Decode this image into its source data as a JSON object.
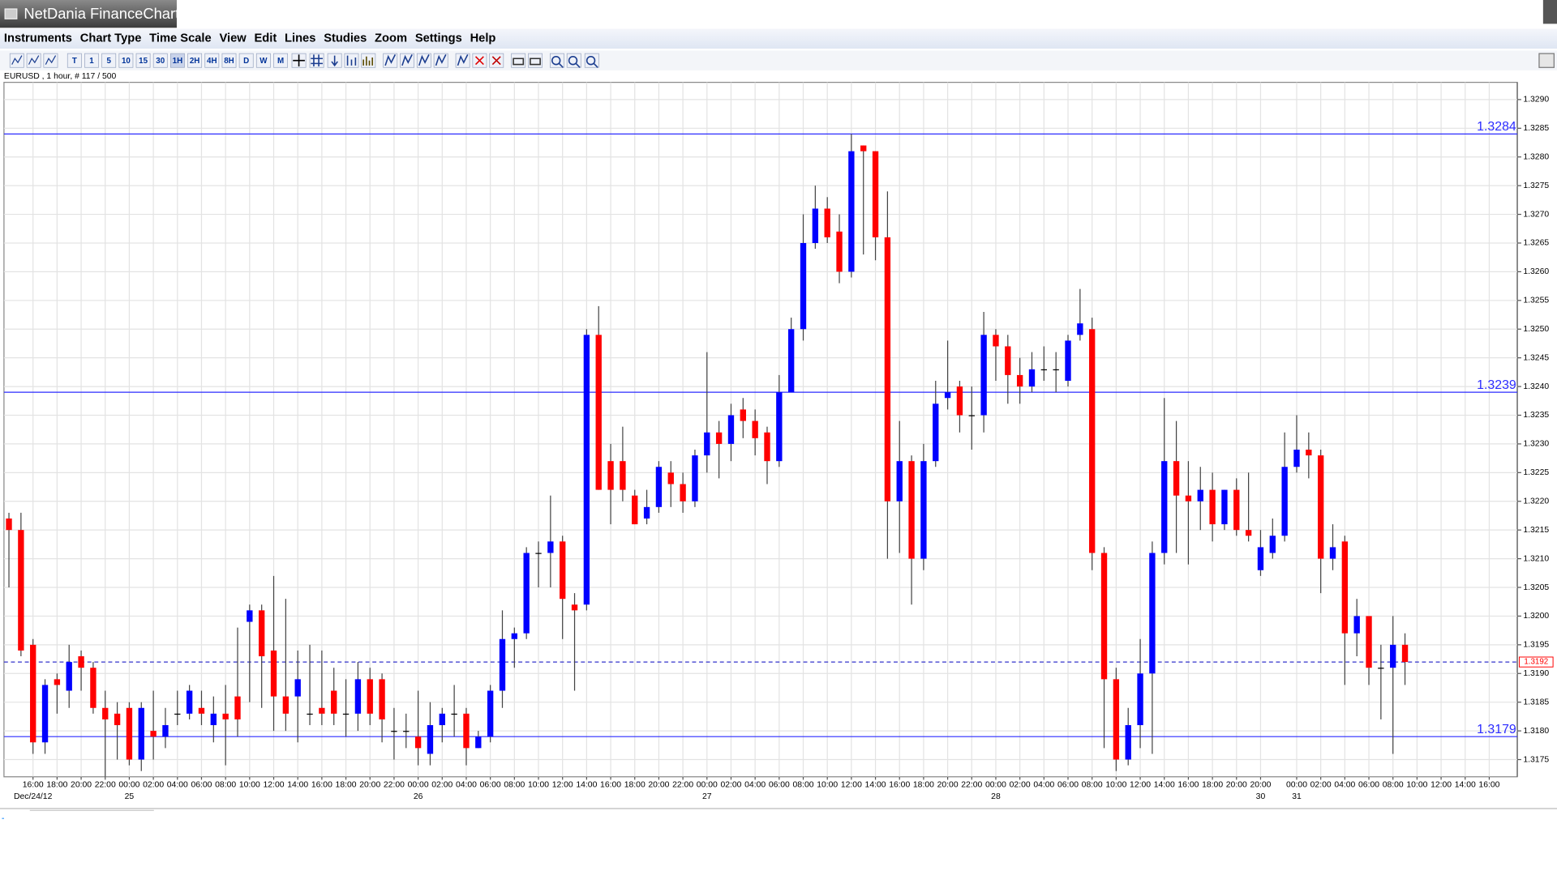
{
  "window": {
    "title": "NetDania FinanceChart"
  },
  "menu": [
    "Instruments",
    "Chart Type",
    "Time Scale",
    "View",
    "Edit",
    "Lines",
    "Studies",
    "Zoom",
    "Settings",
    "Help"
  ],
  "toolbar": {
    "intervals": [
      "T",
      "1",
      "5",
      "10",
      "15",
      "30",
      "1H",
      "2H",
      "4H",
      "8H",
      "D",
      "W",
      "M"
    ]
  },
  "chart_data": {
    "type": "candlestick",
    "subtitle": "EURUSD , 1 hour, # 117 / 500",
    "categories": [
      null,
      null,
      "16:00",
      null,
      "18:00",
      null,
      "20:00",
      null,
      "22:00",
      null,
      "00:00",
      null,
      "02:00",
      null,
      "04:00",
      null,
      "06:00",
      null,
      "08:00",
      null,
      "10:00",
      null,
      "12:00",
      null,
      "14:00",
      null,
      "16:00",
      null,
      "18:00",
      null,
      "20:00",
      null,
      "22:00",
      null,
      "00:00",
      null,
      "02:00",
      null,
      "04:00",
      null,
      "06:00",
      null,
      "08:00",
      null,
      "10:00",
      null,
      "12:00",
      null,
      "14:00",
      null,
      "16:00",
      null,
      "18:00",
      null,
      "20:00",
      null,
      "22:00",
      null,
      "00:00",
      null,
      "02:00",
      null,
      "04:00",
      null,
      "06:00",
      null,
      "08:00",
      null,
      "10:00",
      null,
      "12:00",
      null,
      "14:00",
      null,
      "16:00",
      null,
      "18:00",
      null,
      "20:00",
      null,
      "22:00",
      null,
      "00:00",
      null,
      "02:00",
      null,
      "04:00",
      null,
      "06:00",
      null,
      "08:00",
      null,
      "10:00",
      null,
      "12:00",
      null,
      "14:00",
      null,
      "16:00",
      null,
      "18:00",
      null,
      "20:00",
      null,
      "20:00",
      null,
      null,
      "00:00",
      null,
      "02:00",
      null,
      "04:00",
      null,
      "06:00",
      null,
      "08:00",
      null,
      "10:00",
      null,
      "12:00",
      null,
      "14:00",
      null,
      "16:00"
    ],
    "dates": [
      null,
      null,
      "Dec/24/12",
      null,
      null,
      null,
      null,
      null,
      null,
      null,
      "25",
      null,
      null,
      null,
      null,
      null,
      null,
      null,
      null,
      null,
      null,
      null,
      null,
      null,
      null,
      null,
      null,
      null,
      null,
      null,
      null,
      null,
      null,
      null,
      "26",
      null,
      null,
      null,
      null,
      null,
      null,
      null,
      null,
      null,
      null,
      null,
      null,
      null,
      null,
      null,
      null,
      null,
      null,
      null,
      null,
      null,
      null,
      null,
      "27",
      null,
      null,
      null,
      null,
      null,
      null,
      null,
      null,
      null,
      null,
      null,
      null,
      null,
      null,
      null,
      null,
      null,
      null,
      null,
      null,
      null,
      null,
      null,
      "28",
      null,
      null,
      null,
      null,
      null,
      null,
      null,
      null,
      null,
      null,
      null,
      null,
      null,
      null,
      null,
      null,
      null,
      null,
      null,
      null,
      null,
      "30",
      null,
      null,
      "31",
      null,
      null,
      null,
      null,
      null,
      null,
      null,
      null,
      null,
      null,
      null,
      null,
      null,
      null,
      null,
      null
    ],
    "open": [
      1.3217,
      1.3215,
      1.3195,
      1.3178,
      1.3189,
      1.3187,
      1.3193,
      1.3191,
      1.3184,
      1.3183,
      1.3184,
      1.3175,
      1.318,
      1.3179,
      1.3183,
      1.3183,
      1.3184,
      1.3181,
      1.3183,
      1.3186,
      1.3199,
      1.3201,
      1.3194,
      1.3186,
      1.3186,
      1.3183,
      1.3184,
      1.3187,
      1.3183,
      1.3183,
      1.3189,
      1.3189,
      1.318,
      1.318,
      1.3179,
      1.3176,
      1.3181,
      1.3183,
      1.3183,
      1.3177,
      1.3179,
      1.3187,
      1.3196,
      1.3197,
      1.3211,
      1.3211,
      1.3213,
      1.3202,
      1.3202,
      1.3249,
      1.3227,
      1.3227,
      1.3221,
      1.3217,
      1.3219,
      1.3225,
      1.3223,
      1.322,
      1.3228,
      1.3232,
      1.323,
      1.3236,
      1.3234,
      1.3232,
      1.3227,
      1.3239,
      1.325,
      1.3265,
      1.3271,
      1.3267,
      1.326,
      1.3282,
      1.3281,
      1.3266,
      1.322,
      1.3227,
      1.321,
      1.3227,
      1.3238,
      1.324,
      1.3235,
      1.3235,
      1.3249,
      1.3247,
      1.3242,
      1.324,
      1.3243,
      1.3243,
      1.3241,
      1.3249,
      1.325,
      1.3211,
      1.3189,
      1.3175,
      1.3181,
      1.319,
      1.3211,
      1.3227,
      1.3221,
      1.322,
      1.3222,
      1.3216,
      1.3222,
      1.3215,
      1.3208,
      1.3211,
      1.3214,
      1.3226,
      1.3229,
      1.3228,
      1.321,
      1.3213,
      1.3197,
      1.32,
      1.3191,
      1.3191,
      1.3195,
      null,
      null,
      null,
      null,
      null,
      null,
      null
    ],
    "high": [
      1.3218,
      1.3218,
      1.3196,
      1.3189,
      1.319,
      1.3195,
      1.3194,
      1.3192,
      1.3187,
      1.3185,
      1.3185,
      1.3185,
      1.3187,
      1.3184,
      1.3187,
      1.3188,
      1.3187,
      1.3186,
      1.3188,
      1.3198,
      1.3202,
      1.3202,
      1.3207,
      1.3203,
      1.3194,
      1.3195,
      1.3194,
      1.3191,
      1.3189,
      1.3192,
      1.3191,
      1.319,
      1.3184,
      1.3183,
      1.3187,
      1.3185,
      1.3184,
      1.3188,
      1.3184,
      1.318,
      1.3188,
      1.3201,
      1.3198,
      1.3212,
      1.3213,
      1.3221,
      1.3214,
      1.3204,
      1.325,
      1.3254,
      1.323,
      1.3233,
      1.3222,
      1.3222,
      1.3227,
      1.3227,
      1.3225,
      1.3229,
      1.3246,
      1.3234,
      1.3237,
      1.3238,
      1.3236,
      1.3233,
      1.3242,
      1.3252,
      1.327,
      1.3275,
      1.3273,
      1.327,
      1.3284,
      1.3282,
      1.3281,
      1.3274,
      1.3234,
      1.3228,
      1.323,
      1.3241,
      1.3248,
      1.3241,
      1.324,
      1.3253,
      1.325,
      1.3249,
      1.3245,
      1.3246,
      1.3247,
      1.3246,
      1.3249,
      1.3257,
      1.3252,
      1.3212,
      1.3191,
      1.3184,
      1.3196,
      1.3213,
      1.3238,
      1.3234,
      1.3227,
      1.3226,
      1.3225,
      1.3222,
      1.3224,
      1.3225,
      1.3215,
      1.3217,
      1.3232,
      1.3235,
      1.3232,
      1.3229,
      1.3216,
      1.3214,
      1.3203,
      1.32,
      1.3195,
      1.32,
      1.3197,
      null,
      null,
      null,
      null,
      null,
      null,
      null
    ],
    "low": [
      1.3205,
      1.3193,
      1.3176,
      1.3176,
      1.3183,
      1.3184,
      1.3187,
      1.3183,
      1.3172,
      1.3175,
      1.3174,
      1.3173,
      1.3175,
      1.3177,
      1.3181,
      1.3182,
      1.3181,
      1.3178,
      1.3174,
      1.3179,
      1.3185,
      1.3184,
      1.318,
      1.318,
      1.3178,
      1.3181,
      1.3181,
      1.3181,
      1.3179,
      1.318,
      1.3181,
      1.3178,
      1.3175,
      1.3177,
      1.3174,
      1.3174,
      1.3178,
      1.3179,
      1.3174,
      1.3177,
      1.3178,
      1.3184,
      1.3191,
      1.3196,
      1.3205,
      1.3205,
      1.3196,
      1.3187,
      1.3201,
      1.3222,
      1.3216,
      1.322,
      1.3216,
      1.3216,
      1.3218,
      1.3219,
      1.3218,
      1.3219,
      1.3225,
      1.3224,
      1.3227,
      1.3231,
      1.3228,
      1.3223,
      1.3226,
      1.3239,
      1.3248,
      1.3264,
      1.3265,
      1.3258,
      1.3259,
      1.3263,
      1.3262,
      1.321,
      1.3211,
      1.3202,
      1.3208,
      1.3226,
      1.3236,
      1.3232,
      1.3229,
      1.3232,
      1.3241,
      1.3237,
      1.3237,
      1.3239,
      1.3241,
      1.3239,
      1.324,
      1.3248,
      1.3208,
      1.3177,
      1.3173,
      1.3174,
      1.3177,
      1.3176,
      1.3209,
      1.3211,
      1.3209,
      1.3215,
      1.3213,
      1.3215,
      1.3214,
      1.3213,
      1.3207,
      1.321,
      1.3213,
      1.3225,
      1.3224,
      1.3204,
      1.3208,
      1.3188,
      1.3193,
      1.3188,
      1.3182,
      1.3176,
      1.3188,
      null,
      null,
      null,
      null,
      null,
      null,
      null
    ],
    "close": [
      1.3215,
      1.3194,
      1.3178,
      1.3188,
      1.3188,
      1.3192,
      1.3191,
      1.3184,
      1.3182,
      1.3181,
      1.3175,
      1.3184,
      1.3179,
      1.3181,
      1.3183,
      1.3187,
      1.3183,
      1.3183,
      1.3182,
      1.3182,
      1.3201,
      1.3193,
      1.3186,
      1.3183,
      1.3189,
      1.3183,
      1.3183,
      1.3183,
      1.3183,
      1.3189,
      1.3183,
      1.3182,
      1.318,
      1.318,
      1.3177,
      1.3181,
      1.3183,
      1.3183,
      1.3177,
      1.3179,
      1.3187,
      1.3196,
      1.3197,
      1.3211,
      1.3211,
      1.3213,
      1.3203,
      1.3201,
      1.3249,
      1.3222,
      1.3222,
      1.3222,
      1.3216,
      1.3219,
      1.3226,
      1.3223,
      1.322,
      1.3228,
      1.3232,
      1.323,
      1.3235,
      1.3234,
      1.3231,
      1.3227,
      1.3239,
      1.325,
      1.3265,
      1.3271,
      1.3266,
      1.326,
      1.3281,
      1.3281,
      1.3266,
      1.322,
      1.3227,
      1.321,
      1.3227,
      1.3237,
      1.3239,
      1.3235,
      1.3235,
      1.3249,
      1.3247,
      1.3242,
      1.324,
      1.3243,
      1.3243,
      1.3243,
      1.3248,
      1.3251,
      1.3211,
      1.3189,
      1.3175,
      1.3181,
      1.319,
      1.3211,
      1.3227,
      1.3221,
      1.322,
      1.3222,
      1.3216,
      1.3222,
      1.3215,
      1.3214,
      1.3212,
      1.3214,
      1.3226,
      1.3229,
      1.3228,
      1.321,
      1.3212,
      1.3197,
      1.32,
      1.3191,
      1.3191,
      1.3195,
      1.3192,
      null,
      null,
      null,
      null,
      null,
      null,
      null
    ],
    "up_color": "#0000ff",
    "down_color": "#ff0000",
    "levels": [
      1.3284,
      1.3239,
      1.3179
    ],
    "level_color": "#2b2bff",
    "last_price": 1.3192,
    "ylim": [
      1.3172,
      1.3293
    ],
    "yticks": [
      1.3175,
      {
        "value": 1.318,
        "label": "1.3180"
      },
      1.3185,
      {
        "value": 1.319,
        "label": "1.3190"
      },
      1.3195,
      {
        "value": 1.32,
        "label": "1.3200"
      },
      1.3205,
      {
        "value": 1.321,
        "label": "1.3210"
      },
      1.3215,
      {
        "value": 1.322,
        "label": "1.3220"
      },
      1.3225,
      {
        "value": 1.323,
        "label": "1.3230"
      },
      1.3235,
      {
        "value": 1.324,
        "label": "1.3240"
      },
      1.3245,
      {
        "value": 1.325,
        "label": "1.3250"
      },
      1.3255,
      {
        "value": 1.326,
        "label": "1.3260"
      },
      1.3265,
      {
        "value": 1.327,
        "label": "1.3270"
      },
      1.3275,
      {
        "value": 1.328,
        "label": "1.3280"
      },
      1.3285,
      {
        "value": 1.329,
        "label": "1.3290"
      }
    ],
    "grid": true,
    "y_axis_side": "right"
  }
}
